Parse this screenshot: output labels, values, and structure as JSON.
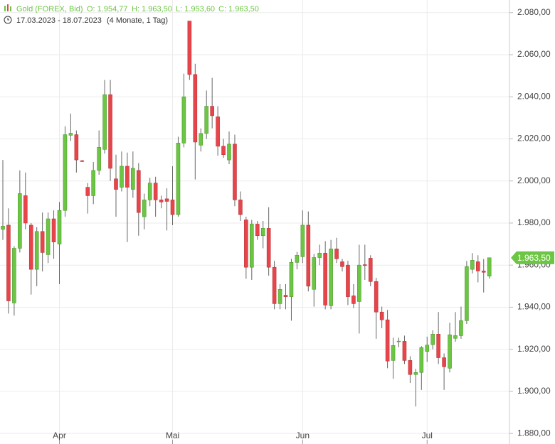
{
  "chart_data": {
    "type": "candlestick",
    "title": "Gold (FOREX, Bid)",
    "header_values": [
      "O: 1.954,77",
      "H: 1.963,50",
      "L: 1.953,60",
      "C: 1.963,50"
    ],
    "date_range": "17.03.2023 - 18.07.2023",
    "period": "(4 Monate, 1 Tag)",
    "categories": [
      null,
      null,
      null,
      null,
      null,
      null,
      null,
      null,
      null,
      null,
      "Apr",
      null,
      null,
      null,
      null,
      null,
      null,
      null,
      null,
      null,
      null,
      null,
      null,
      null,
      null,
      null,
      null,
      null,
      null,
      null,
      "Mai",
      null,
      null,
      null,
      null,
      null,
      null,
      null,
      null,
      null,
      null,
      null,
      null,
      null,
      null,
      null,
      null,
      null,
      null,
      null,
      null,
      null,
      null,
      "Jun",
      null,
      null,
      null,
      null,
      null,
      null,
      null,
      null,
      null,
      null,
      null,
      null,
      null,
      null,
      null,
      null,
      null,
      null,
      null,
      null,
      null,
      "Jul",
      null,
      null,
      null,
      null,
      null,
      null,
      null,
      null,
      null,
      null,
      null
    ],
    "open": [
      1977,
      1979,
      1942,
      1968,
      1993,
      1979,
      1958,
      1976,
      1965,
      1982,
      1970,
      1986,
      2021.7,
      2022,
      2009.6,
      1997,
      1993,
      2005,
      2015,
      2041,
      2001,
      1997,
      2007,
      1996,
      2005,
      1983,
      1991,
      1999,
      1991,
      1991.5,
      1991,
      1984,
      2018,
      2076,
      2050.6,
      2017,
      2022.6,
      2035.5,
      2030.5,
      2016.5,
      2010,
      2017.5,
      1991,
      1981.5,
      1959,
      1979.5,
      1974,
      1977.5,
      1959,
      1941.7,
      1945.7,
      1945,
      1961.3,
      1964,
      1979,
      1948.5,
      1963.6,
      1965.7,
      1940.7,
      1967.7,
      1961.6,
      1960,
      1945.4,
      1942.7,
      1960.2,
      1963.3,
      1952.2,
      1937.7,
      1934,
      1914.7,
      1923.6,
      1923.8,
      1914.7,
      1908,
      1909,
      1919,
      1922.2,
      1927.2,
      1916,
      1911,
      1925.2,
      1926.5,
      1933.6,
      1958,
      1961.6,
      1957.2,
      1954.77
    ],
    "high": [
      2010,
      1987,
      1969,
      2005,
      2004,
      1980,
      1978,
      1985,
      1985,
      1986,
      1990,
      2026,
      2032,
      2024,
      2010,
      1999,
      2009,
      2024,
      2048,
      2048,
      2012.5,
      2014,
      2013.5,
      2014,
      2008.5,
      1994,
      2001.5,
      2002,
      1993,
      1996.5,
      2007,
      2021,
      2051,
      2076,
      2055.7,
      2025,
      2043,
      2049,
      2035.5,
      2020,
      2023.5,
      2022,
      1995,
      1983,
      1981.5,
      1981,
      1981,
      1987.5,
      1962,
      1951,
      1951,
      1963,
      1966.3,
      1986,
      1985.5,
      1965.3,
      1969.7,
      1971.4,
      1972,
      1973,
      1963,
      1962,
      1951,
      1969.7,
      1969.7,
      1964.7,
      1954,
      1940.3,
      1938.7,
      1925.5,
      1925.5,
      1926.5,
      1916.7,
      1910.7,
      1921.5,
      1926,
      1929,
      1937.7,
      1918,
      1932.6,
      1937.7,
      1940.3,
      1962,
      1965.7,
      1964.7,
      1962.9,
      1963.5
    ],
    "low": [
      1972,
      1937,
      1936,
      1966,
      1977,
      1946,
      1950,
      1957,
      1961,
      1963,
      1951,
      1983,
      2019,
      2004,
      2009,
      1984.5,
      1989,
      2003,
      2013,
      2000,
      1983,
      1995,
      1971,
      1992,
      1974,
      1977,
      1988,
      1983,
      1987,
      1976.5,
      1979,
      1983,
      2016,
      2048,
      2000.7,
      2014,
      2020,
      2025,
      2012,
      2011,
      2008,
      1988,
      1981,
      1953.5,
      1953,
      1972,
      1968,
      1955,
      1939,
      1939,
      1939,
      1933.6,
      1958,
      1961,
      1947.5,
      1940.3,
      1960,
      1939,
      1939,
      1961,
      1957,
      1941,
      1939.6,
      1927.5,
      1953,
      1950,
      1925,
      1930,
      1911,
      1906,
      1921,
      1913,
      1904,
      1892.8,
      1900.7,
      1914,
      1920,
      1913,
      1900.7,
      1909,
      1923.6,
      1925,
      1932,
      1956,
      1951.8,
      1947,
      1953.6
    ],
    "close": [
      1978.5,
      1943,
      1968,
      1994,
      1980,
      1958,
      1976,
      1966,
      1982,
      1971,
      1986,
      2022,
      2022.7,
      2010,
      2009.4,
      1993,
      2005,
      2016,
      2041,
      2006,
      1996,
      2007,
      1997,
      2006,
      1985,
      1991,
      1999,
      1991,
      1990,
      1990.3,
      1984,
      2018,
      2040,
      2050.6,
      2018.5,
      2022.6,
      2035.5,
      2031,
      2016.5,
      2012.5,
      2017.5,
      1991,
      1984,
      1959,
      1979.5,
      1974,
      1977.5,
      1959,
      1941.7,
      1948.5,
      1945,
      1961.3,
      1964.7,
      1979,
      1950,
      1963.6,
      1965.7,
      1941,
      1967.7,
      1963,
      1959.3,
      1945,
      1941.7,
      1960,
      1959.8,
      1952.2,
      1937.7,
      1934,
      1914.4,
      1921.8,
      1923.9,
      1914.7,
      1908,
      1909,
      1920.8,
      1922,
      1927.2,
      1916,
      1911.7,
      1926.9,
      1926.5,
      1933.6,
      1959.3,
      1962.3,
      1957.2,
      1956.6,
      1963.5
    ],
    "up_color": "#6cc644",
    "down_color": "#e8454b",
    "last_price": {
      "value": 1963.5,
      "label": "1.963,50"
    },
    "ylim": [
      1876,
      2086
    ],
    "yticks": [
      {
        "value": 1880,
        "label": "1.880,00"
      },
      {
        "value": 1900,
        "label": "1.900,00"
      },
      {
        "value": 1920,
        "label": "1.920,00"
      },
      {
        "value": 1940,
        "label": "1.940,00"
      },
      {
        "value": 1960,
        "label": "1.960,00"
      },
      {
        "value": 1980,
        "label": "1.980,00"
      },
      {
        "value": 2000,
        "label": "2.000,00"
      },
      {
        "value": 2020,
        "label": "2.020,00"
      },
      {
        "value": 2040,
        "label": "2.040,00"
      },
      {
        "value": 2060,
        "label": "2.060,00"
      },
      {
        "value": 2080,
        "label": "2.080,00"
      }
    ],
    "grid": true
  }
}
